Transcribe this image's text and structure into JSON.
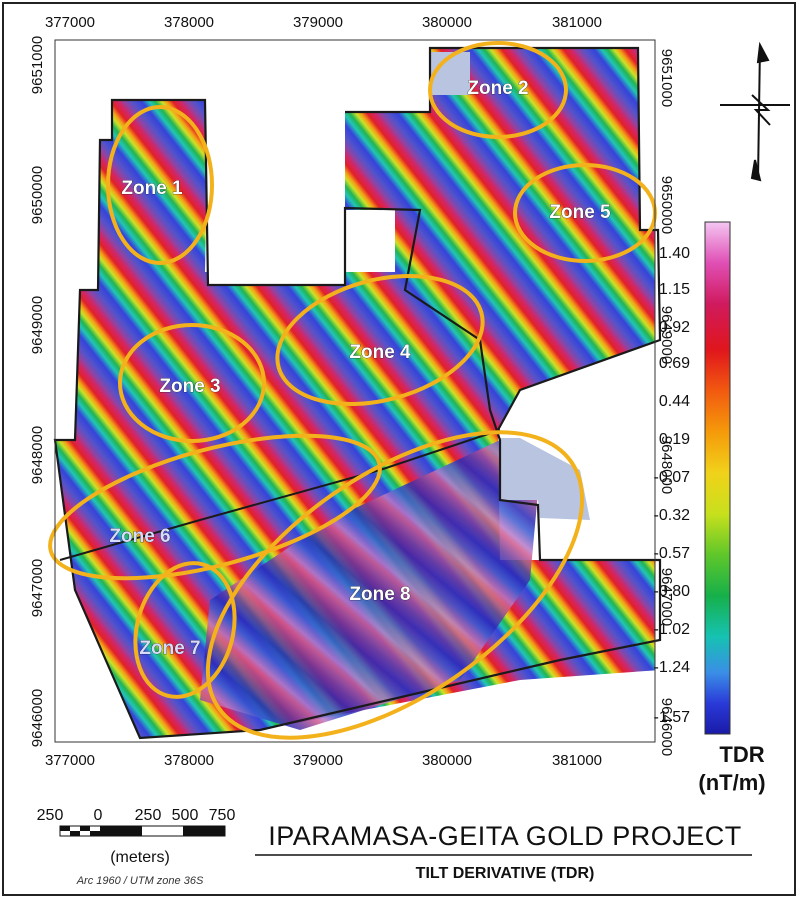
{
  "map": {
    "title": "IPARAMASA-GEITA GOLD PROJECT",
    "subtitle": "TILT DERIVATIVE (TDR)",
    "projection": "Arc 1960 / UTM zone 36S",
    "x_ticks": [
      "377000",
      "378000",
      "379000",
      "380000",
      "381000"
    ],
    "y_ticks": [
      "9651000",
      "9650000",
      "9649000",
      "9648000",
      "9647000",
      "9646000"
    ],
    "zones": [
      "Zone 1",
      "Zone 2",
      "Zone 3",
      "Zone 4",
      "Zone 5",
      "Zone 6",
      "Zone 7",
      "Zone 8"
    ],
    "zone_color": "#f3b21b",
    "boundary_color": "#1a1a1a",
    "north_arrow_icon": "north-arrow-icon"
  },
  "legend": {
    "title_line1": "TDR",
    "title_line2": "(nT/m)",
    "values": [
      "1.40",
      "1.15",
      "0.92",
      "0.69",
      "0.44",
      "0.19",
      "-0.07",
      "-0.32",
      "-0.57",
      "-0.80",
      "-1.02",
      "-1.24",
      "-1.57"
    ],
    "colors_top_to_bottom": [
      "#f4c6f2",
      "#e04fb5",
      "#d01a5e",
      "#e0161c",
      "#f25a10",
      "#f59a0a",
      "#f1d21a",
      "#c8e01c",
      "#5fc72a",
      "#16b04a",
      "#16c2b2",
      "#3a8ee6",
      "#2a3ad8",
      "#1a1aa8"
    ]
  },
  "scale": {
    "labels": [
      "250",
      "0",
      "250",
      "500",
      "750"
    ],
    "unit": "(meters)"
  }
}
